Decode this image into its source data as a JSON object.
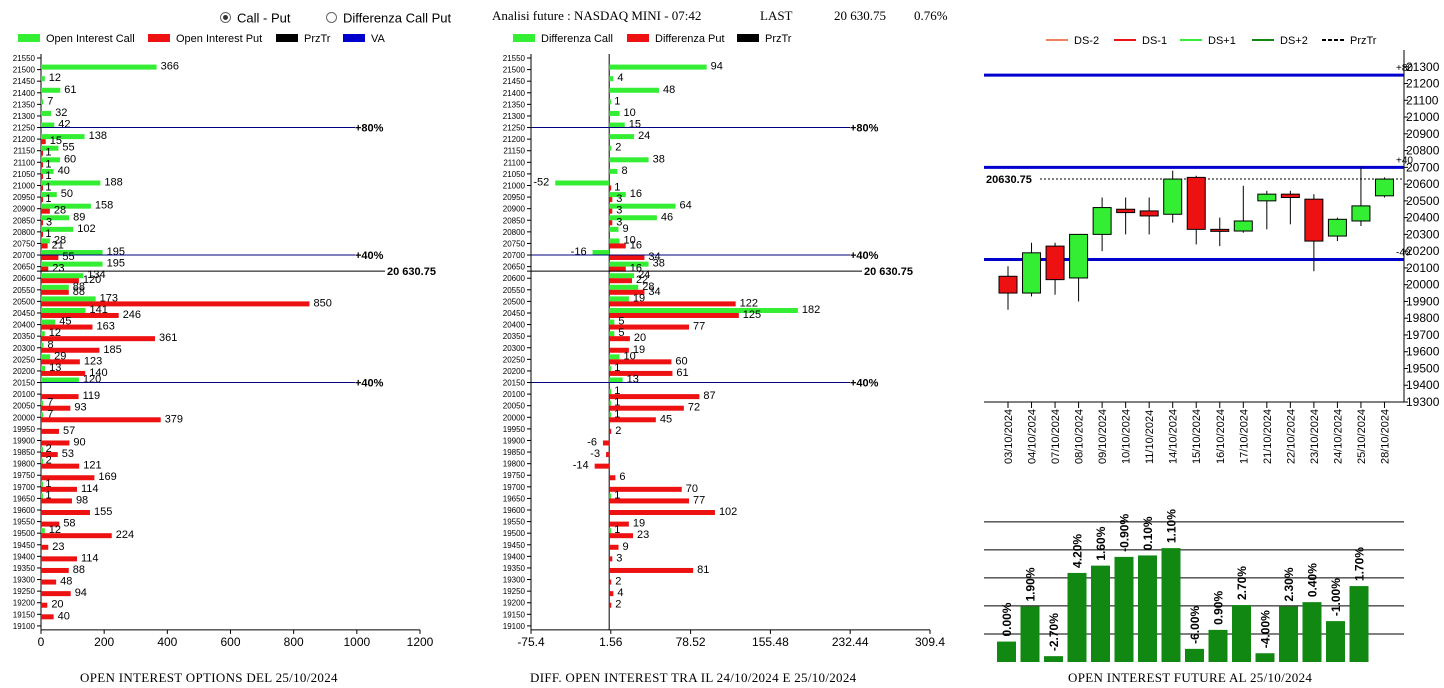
{
  "header": {
    "mode_options": [
      {
        "label": "Call - Put",
        "selected": true
      },
      {
        "label": "Differenza Call Put",
        "selected": false
      }
    ],
    "instrument_label": "Analisi future : NASDAQ MINI - 07:42",
    "last_label": "LAST",
    "last_value": "20 630.75",
    "change": "0.76%"
  },
  "captions": {
    "oi": "OPEN INTEREST OPTIONS DEL 25/10/2024",
    "diff": "DIFF. OPEN INTEREST TRA IL 24/10/2024 E 25/10/2024",
    "future": "OPEN INTEREST FUTURE AL 25/10/2024"
  },
  "colors": {
    "call": "#33ee33",
    "put": "#ee1111",
    "level": "#000080",
    "price": "#000000",
    "future_bar": "#118811",
    "va": "#0000cc"
  },
  "chart_data": [
    {
      "type": "bar",
      "orientation": "horizontal",
      "legend": [
        "Open Interest Call",
        "Open Interest Put",
        "PrzTr",
        "VA"
      ],
      "categories": [
        21550,
        21500,
        21450,
        21400,
        21350,
        21300,
        21250,
        21200,
        21150,
        21100,
        21050,
        21000,
        20950,
        20900,
        20850,
        20800,
        20750,
        20700,
        20650,
        20600,
        20550,
        20500,
        20450,
        20400,
        20350,
        20300,
        20250,
        20200,
        20150,
        20100,
        20050,
        20000,
        19950,
        19900,
        19850,
        19800,
        19750,
        19700,
        19650,
        19600,
        19550,
        19500,
        19450,
        19400,
        19350,
        19300,
        19250,
        19200,
        19150,
        19100
      ],
      "series": [
        {
          "name": "Open Interest Call",
          "values": [
            0,
            366,
            12,
            61,
            7,
            32,
            42,
            138,
            55,
            60,
            40,
            188,
            50,
            158,
            89,
            102,
            28,
            195,
            195,
            134,
            88,
            173,
            141,
            45,
            12,
            8,
            29,
            13,
            120,
            0,
            7,
            7,
            0,
            0,
            2,
            2,
            0,
            1,
            1,
            0,
            0,
            12,
            0,
            0,
            0,
            0,
            0,
            0,
            0,
            0
          ]
        },
        {
          "name": "Open Interest Put",
          "values": [
            0,
            0,
            0,
            0,
            0,
            0,
            0,
            15,
            1,
            1,
            1,
            1,
            1,
            28,
            3,
            1,
            21,
            55,
            23,
            120,
            88,
            850,
            246,
            163,
            361,
            185,
            123,
            140,
            0,
            119,
            93,
            379,
            57,
            90,
            53,
            121,
            169,
            114,
            98,
            155,
            58,
            224,
            23,
            114,
            88,
            48,
            94,
            20,
            40,
            0
          ]
        }
      ],
      "levels": [
        {
          "price": 21250,
          "label": "80%"
        },
        {
          "price": 20700,
          "label": "40%"
        },
        {
          "price": 20150,
          "label": "40%"
        }
      ],
      "price_line": {
        "value": 20630.75,
        "label": "20 630.75"
      },
      "xlim": [
        0,
        1200
      ],
      "xticks": [
        0,
        200,
        400,
        600,
        800,
        1000,
        1200
      ],
      "xlabel": "OPEN INTEREST OPTIONS DEL 25/10/2024"
    },
    {
      "type": "bar",
      "orientation": "horizontal",
      "legend": [
        "Differenza Call",
        "Differenza Put",
        "PrzTr"
      ],
      "categories": [
        21550,
        21500,
        21450,
        21400,
        21350,
        21300,
        21250,
        21200,
        21150,
        21100,
        21050,
        21000,
        20950,
        20900,
        20850,
        20800,
        20750,
        20700,
        20650,
        20600,
        20550,
        20500,
        20450,
        20400,
        20350,
        20300,
        20250,
        20200,
        20150,
        20100,
        20050,
        20000,
        19950,
        19900,
        19850,
        19800,
        19750,
        19700,
        19650,
        19600,
        19550,
        19500,
        19450,
        19400,
        19350,
        19300,
        19250,
        19200,
        19150,
        19100
      ],
      "series": [
        {
          "name": "Differenza Call",
          "values": [
            0,
            94,
            4,
            48,
            1,
            10,
            15,
            24,
            2,
            38,
            8,
            -52,
            16,
            64,
            46,
            9,
            10,
            -16,
            38,
            24,
            28,
            19,
            182,
            5,
            5,
            0,
            10,
            1,
            13,
            1,
            1,
            1,
            0,
            0,
            0,
            0,
            0,
            0,
            1,
            0,
            0,
            1,
            0,
            0,
            0,
            0,
            0,
            0,
            0,
            0
          ]
        },
        {
          "name": "Differenza Put",
          "values": [
            0,
            0,
            0,
            0,
            0,
            0,
            0,
            0,
            0,
            0,
            0,
            1,
            3,
            3,
            3,
            0,
            16,
            34,
            16,
            22,
            34,
            122,
            125,
            77,
            20,
            19,
            60,
            61,
            0,
            87,
            72,
            45,
            2,
            -6,
            -3,
            -14,
            6,
            70,
            77,
            102,
            19,
            23,
            9,
            3,
            81,
            2,
            4,
            2,
            0,
            0
          ]
        }
      ],
      "levels": [
        {
          "price": 21250,
          "label": "80%"
        },
        {
          "price": 20700,
          "label": "40%"
        },
        {
          "price": 20150,
          "label": "40%"
        }
      ],
      "price_line": {
        "value": 20630.75,
        "label": "20 630.75"
      },
      "xlim": [
        -75.4,
        309.4
      ],
      "xticks": [
        -75.4,
        1.56,
        78.52,
        155.48,
        232.44,
        309.4
      ],
      "xlabel": "DIFF. OPEN INTEREST TRA IL 24/10/2024 E 25/10/2024"
    },
    {
      "type": "candlestick",
      "legend": [
        "DS-2",
        "DS-1",
        "DS+1",
        "DS+2",
        "PrzTr"
      ],
      "x": [
        "03/10/2024",
        "04/10/2024",
        "07/10/2024",
        "08/10/2024",
        "09/10/2024",
        "10/10/2024",
        "11/10/2024",
        "14/10/2024",
        "15/10/2024",
        "16/10/2024",
        "17/10/2024",
        "21/10/2024",
        "22/10/2024",
        "23/10/2024",
        "24/10/2024",
        "25/10/2024",
        "28/10/2024"
      ],
      "candles": [
        {
          "o": 20050,
          "h": 20110,
          "l": 19850,
          "c": 19950
        },
        {
          "o": 19950,
          "h": 20250,
          "l": 19930,
          "c": 20190
        },
        {
          "o": 20230,
          "h": 20250,
          "l": 19940,
          "c": 20030
        },
        {
          "o": 20040,
          "h": 20300,
          "l": 19900,
          "c": 20300
        },
        {
          "o": 20300,
          "h": 20520,
          "l": 20200,
          "c": 20460
        },
        {
          "o": 20450,
          "h": 20520,
          "l": 20300,
          "c": 20430
        },
        {
          "o": 20440,
          "h": 20520,
          "l": 20300,
          "c": 20410
        },
        {
          "o": 20420,
          "h": 20680,
          "l": 20370,
          "c": 20630
        },
        {
          "o": 20640,
          "h": 20650,
          "l": 20240,
          "c": 20330
        },
        {
          "o": 20330,
          "h": 20400,
          "l": 20230,
          "c": 20320
        },
        {
          "o": 20320,
          "h": 20590,
          "l": 20310,
          "c": 20380
        },
        {
          "o": 20500,
          "h": 20560,
          "l": 20330,
          "c": 20540
        },
        {
          "o": 20540,
          "h": 20560,
          "l": 20360,
          "c": 20520
        },
        {
          "o": 20510,
          "h": 20540,
          "l": 20080,
          "c": 20260
        },
        {
          "o": 20290,
          "h": 20400,
          "l": 20260,
          "c": 20390
        },
        {
          "o": 20380,
          "h": 20700,
          "l": 20350,
          "c": 20470
        },
        {
          "o": 20530,
          "h": 20640,
          "l": 20520,
          "c": 20630
        }
      ],
      "bands": [
        {
          "value": 21250,
          "label": "+80"
        },
        {
          "value": 20700,
          "label": "+40"
        },
        {
          "value": 20150,
          "label": "-40"
        }
      ],
      "price_line": {
        "value": 20630.75,
        "label": "20630.75"
      },
      "ylim": [
        19300,
        21400
      ],
      "yticks": [
        19300,
        19400,
        19500,
        19600,
        19700,
        19800,
        19900,
        20000,
        20100,
        20200,
        20300,
        20400,
        20500,
        20600,
        20700,
        20800,
        20900,
        21000,
        21100,
        21200,
        21300
      ]
    },
    {
      "type": "bar",
      "title": "OPEN INTEREST FUTURE AL 25/10/2024",
      "categories": [
        "03/10/2024",
        "04/10/2024",
        "07/10/2024",
        "08/10/2024",
        "09/10/2024",
        "10/10/2024",
        "11/10/2024",
        "14/10/2024",
        "15/10/2024",
        "16/10/2024",
        "17/10/2024",
        "21/10/2024",
        "22/10/2024",
        "23/10/2024",
        "24/10/2024",
        "25/10/2024"
      ],
      "values": [
        0.7,
        1.9,
        0.2,
        3.05,
        3.3,
        3.6,
        3.65,
        3.9,
        0.45,
        1.1,
        1.95,
        0.3,
        1.9,
        2.05,
        1.4,
        2.6
      ],
      "labels": [
        "0.00%",
        "1.90%",
        "-2.70%",
        "4.20%",
        "1.60%",
        "-0.90%",
        "0.10%",
        "1.10%",
        "-6.00%",
        "0.90%",
        "2.70%",
        "-4.00%",
        "2.30%",
        "0.40%",
        "-1.00%",
        "1.70%"
      ]
    }
  ]
}
